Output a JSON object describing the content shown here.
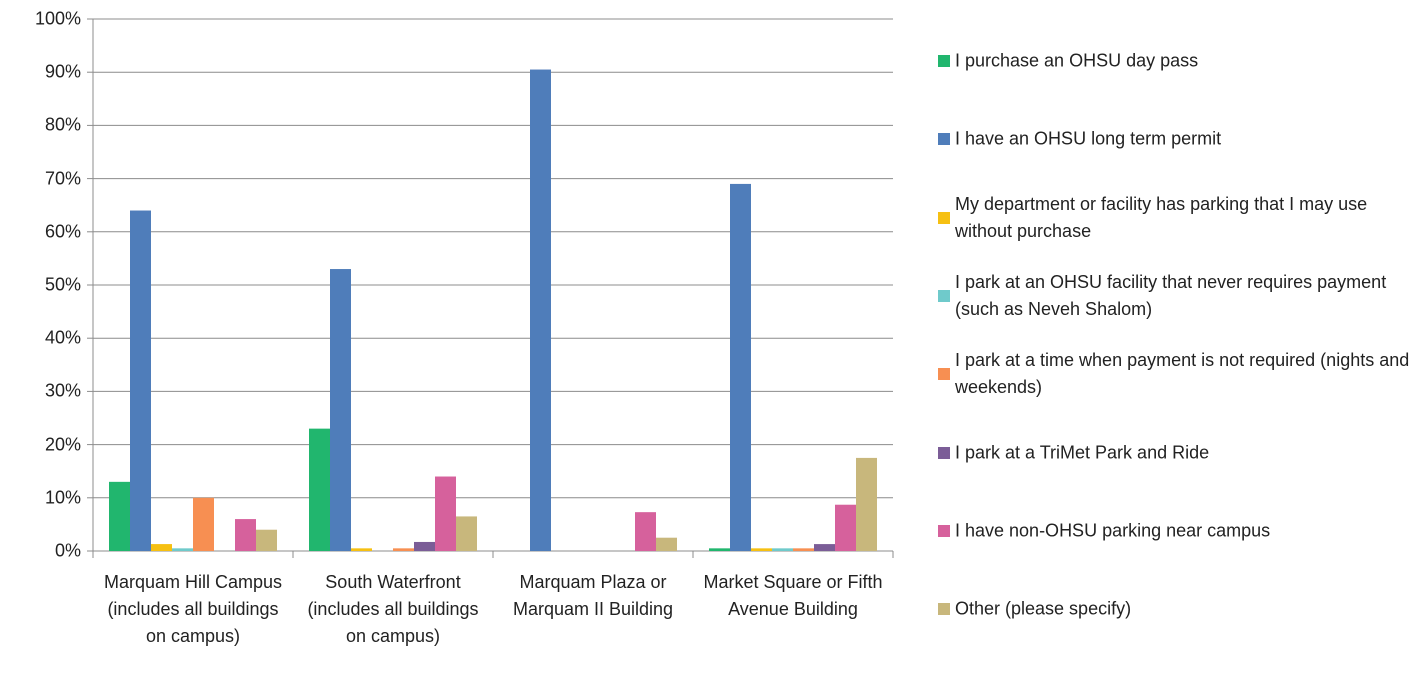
{
  "chart_data": {
    "type": "bar",
    "categories": [
      "Marquam Hill Campus (includes all buildings on campus)",
      "South Waterfront (includes all buildings on campus)",
      "Marquam Plaza or Marquam II Building",
      "Market Square or Fifth Avenue Building"
    ],
    "series": [
      {
        "name": "I purchase an OHSU day pass",
        "color": "#21b66e",
        "values": [
          13,
          23,
          0,
          0.5
        ]
      },
      {
        "name": "I have an OHSU long term permit",
        "color": "#4f7dba",
        "values": [
          64,
          53,
          90.5,
          69
        ]
      },
      {
        "name": "My department or facility has parking that I may use without purchase",
        "color": "#f6c012",
        "values": [
          1.3,
          0.5,
          0,
          0.5
        ]
      },
      {
        "name": "I park at an OHSU facility that never requires payment (such as Neveh Shalom)",
        "color": "#6fcacb",
        "values": [
          0.5,
          0,
          0,
          0.5
        ]
      },
      {
        "name": "I park at a time when payment is not required (nights and weekends)",
        "color": "#f78f52",
        "values": [
          10,
          0.5,
          0,
          0.5
        ]
      },
      {
        "name": "I park at a TriMet Park and Ride",
        "color": "#7b5d97",
        "values": [
          0,
          1.7,
          0,
          1.3
        ]
      },
      {
        "name": "I have non-OHSU parking near campus",
        "color": "#d6619c",
        "values": [
          6,
          14,
          7.3,
          8.7
        ]
      },
      {
        "name": "Other (please specify)",
        "color": "#c8b77c",
        "values": [
          4,
          6.5,
          2.5,
          17.5
        ]
      }
    ],
    "ylim": [
      0,
      100
    ],
    "yticks": [
      {
        "value": 0,
        "label": "0%"
      },
      {
        "value": 10,
        "label": "10%"
      },
      {
        "value": 20,
        "label": "20%"
      },
      {
        "value": 30,
        "label": "30%"
      },
      {
        "value": 40,
        "label": "40%"
      },
      {
        "value": 50,
        "label": "50%"
      },
      {
        "value": 60,
        "label": "60%"
      },
      {
        "value": 70,
        "label": "70%"
      },
      {
        "value": 80,
        "label": "80%"
      },
      {
        "value": 90,
        "label": "90%"
      },
      {
        "value": 100,
        "label": "100%"
      }
    ],
    "grid": true,
    "legend": "right"
  }
}
